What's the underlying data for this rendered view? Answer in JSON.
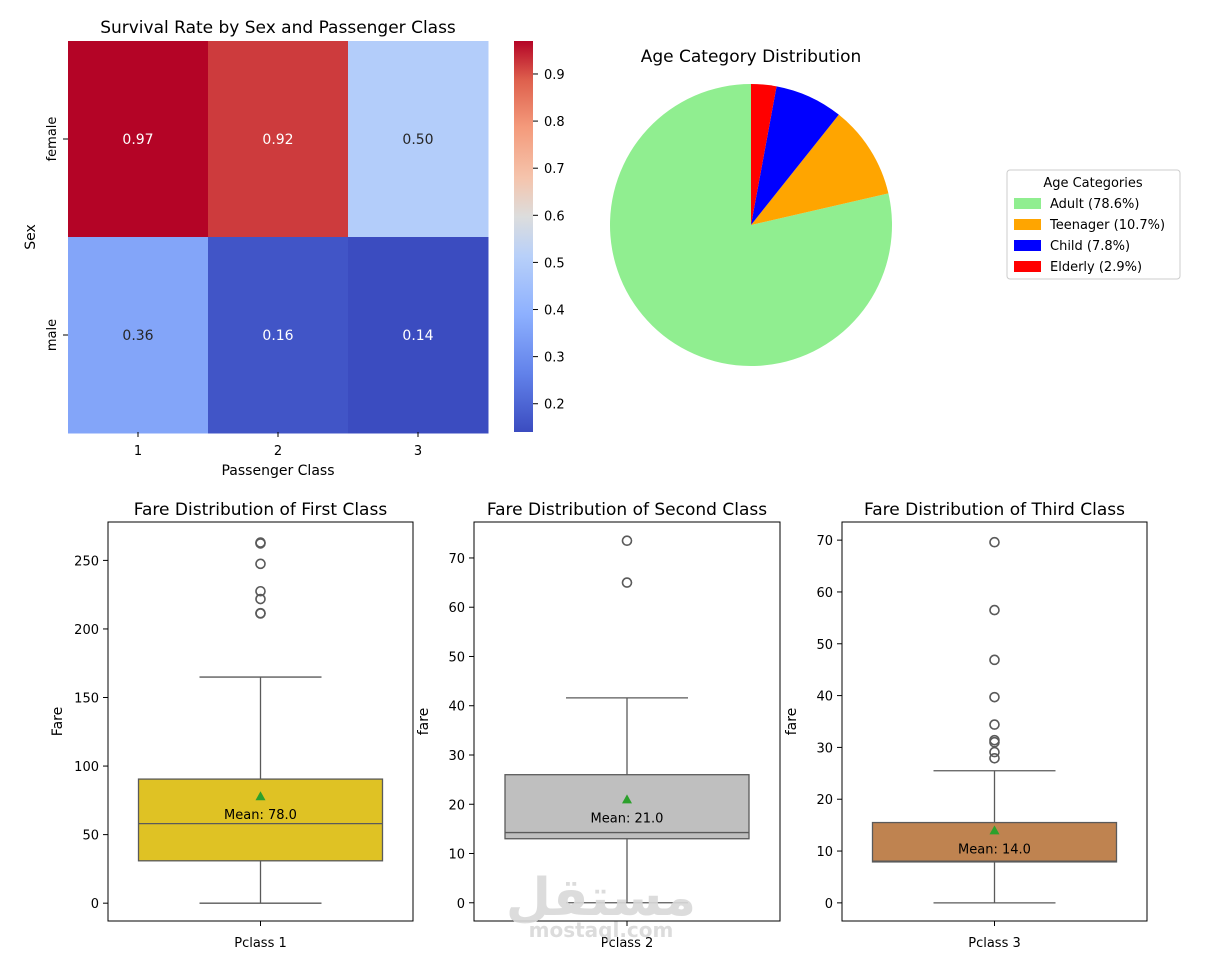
{
  "chart_data": [
    {
      "type": "heatmap",
      "title": "Survival Rate by Sex and Passenger Class",
      "xlabel": "Passenger Class",
      "ylabel": "Sex",
      "x_categories": [
        "1",
        "2",
        "3"
      ],
      "y_categories": [
        "female",
        "male"
      ],
      "values": [
        [
          0.97,
          0.92,
          0.5
        ],
        [
          0.36,
          0.16,
          0.14
        ]
      ],
      "annotations": [
        [
          "0.97",
          "0.92",
          "0.50"
        ],
        [
          "0.36",
          "0.16",
          "0.14"
        ]
      ],
      "colormap": "coolwarm",
      "colorbar": {
        "range": [
          0.14,
          0.97
        ],
        "ticks": [
          0.2,
          0.3,
          0.4,
          0.5,
          0.6,
          0.7,
          0.8,
          0.9
        ],
        "tick_labels": [
          "0.2",
          "0.3",
          "0.4",
          "0.5",
          "0.6",
          "0.7",
          "0.8",
          "0.9"
        ]
      }
    },
    {
      "type": "pie",
      "title": "Age Category Distribution",
      "legend_title": "Age Categories",
      "legend_position": "right",
      "slices": [
        {
          "label": "Adult (78.6%)",
          "value": 78.6,
          "color": "#90ee90"
        },
        {
          "label": "Teenager (10.7%)",
          "value": 10.7,
          "color": "#ffa500"
        },
        {
          "label": "Child (7.8%)",
          "value": 7.8,
          "color": "#0000ff"
        },
        {
          "label": "Elderly (2.9%)",
          "value": 2.9,
          "color": "#ff0000"
        }
      ]
    },
    {
      "type": "box",
      "title": "Fare Distribution of First Class",
      "xlabel": "",
      "ylabel": "Fare",
      "category": "Pclass 1",
      "color": "#dfc224",
      "ylim": [
        -13,
        278
      ],
      "yticks": [
        0,
        50,
        100,
        150,
        200,
        250
      ],
      "q1": 30.9,
      "median": 58.0,
      "q3": 90.5,
      "whisker_low": 0,
      "whisker_high": 164.9,
      "mean": 78.0,
      "mean_label": "Mean: 78.0",
      "outliers": [
        211.3,
        211.5,
        221.8,
        227.5,
        247.5,
        262.4,
        263.0
      ]
    },
    {
      "type": "box",
      "title": "Fare Distribution of Second Class",
      "xlabel": "",
      "ylabel": "fare",
      "category": "Pclass 2",
      "color": "#bfbfbf",
      "ylim": [
        -3.7,
        77.3
      ],
      "yticks": [
        0,
        10,
        20,
        30,
        40,
        50,
        60,
        70
      ],
      "q1": 13.0,
      "median": 14.25,
      "q3": 26.0,
      "whisker_low": 0,
      "whisker_high": 41.6,
      "mean": 21.0,
      "mean_label": "Mean: 21.0",
      "outliers": [
        65.0,
        73.5
      ]
    },
    {
      "type": "box",
      "title": "Fare Distribution of Third Class",
      "xlabel": "",
      "ylabel": "fare",
      "category": "Pclass 3",
      "color": "#bf8350",
      "ylim": [
        -3.5,
        73.5
      ],
      "yticks": [
        0,
        10,
        20,
        30,
        40,
        50,
        60,
        70
      ],
      "q1": 7.9,
      "median": 8.05,
      "q3": 15.5,
      "whisker_low": 0,
      "whisker_high": 25.5,
      "mean": 14.0,
      "mean_label": "Mean: 14.0",
      "outliers": [
        27.9,
        29.1,
        31.0,
        31.4,
        34.4,
        39.7,
        46.9,
        56.5,
        69.6
      ]
    }
  ],
  "watermark": {
    "arabic": "مستقل",
    "latin": "mostaql.com"
  }
}
